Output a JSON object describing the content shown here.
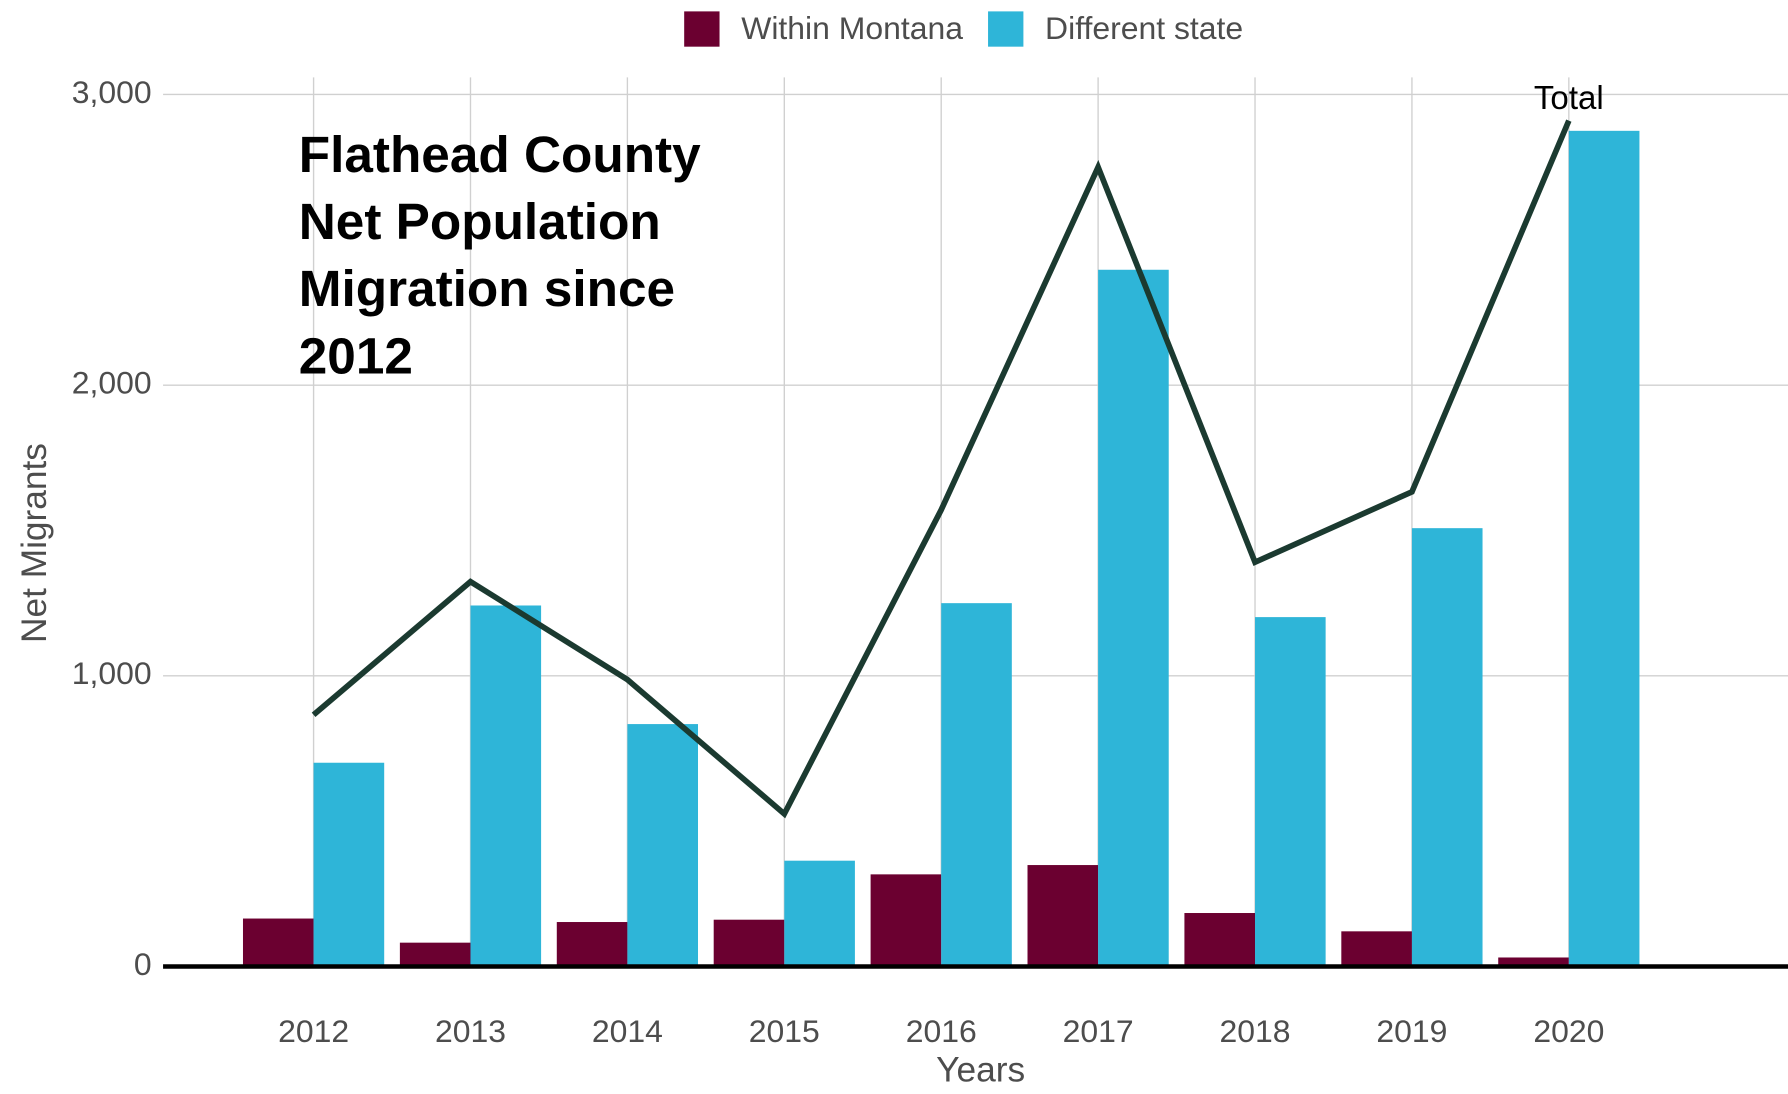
{
  "chart_data": {
    "type": "bar",
    "title": [
      "Flathead County",
      "Net Population",
      "Migration since",
      "2012"
    ],
    "x_label": "Years",
    "y_label": "Net Migrants",
    "categories": [
      "2012",
      "2013",
      "2014",
      "2015",
      "2016",
      "2017",
      "2018",
      "2019",
      "2020"
    ],
    "series": [
      {
        "name": "Within Montana",
        "color": "#6b0030",
        "values": [
          165,
          82,
          153,
          161,
          317,
          349,
          184,
          121,
          31
        ]
      },
      {
        "name": "Different state",
        "color": "#2eb5d8",
        "values": [
          701,
          1242,
          834,
          364,
          1250,
          2397,
          1202,
          1508,
          2875
        ]
      }
    ],
    "line": {
      "name": "Total",
      "color": "#1b3a30",
      "values": [
        866,
        1324,
        987,
        525,
        1571,
        2750,
        1391,
        1633,
        2910
      ]
    },
    "ylim": [
      0,
      3000
    ],
    "yticks": [
      0,
      {
        "value": 1000,
        "label": "1,000"
      },
      {
        "value": 2000,
        "label": "2,000"
      },
      {
        "value": 3000,
        "label": "3,000"
      }
    ],
    "grid": true,
    "legend_position": "top"
  }
}
